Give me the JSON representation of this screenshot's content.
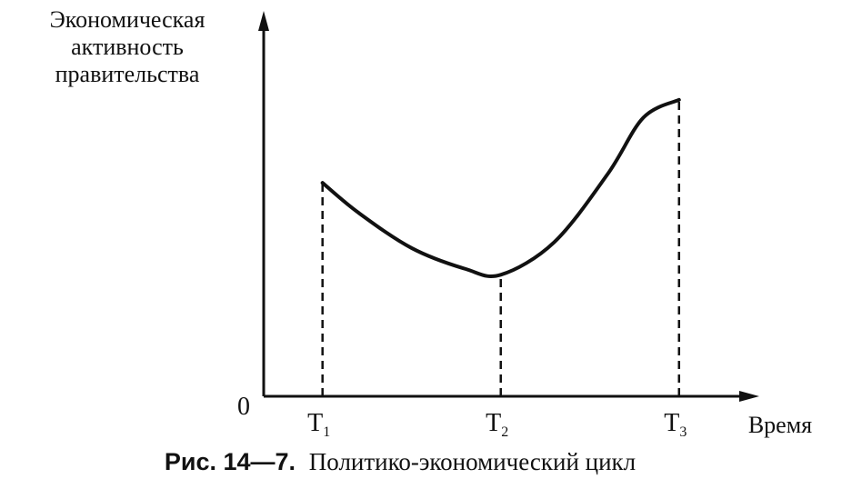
{
  "chart_data": {
    "type": "line",
    "ylabel_lines": [
      "Экономическая",
      "активность",
      "правительства"
    ],
    "xlabel": "Время",
    "origin_label": "0",
    "ticks": [
      {
        "main": "T",
        "sub": "1"
      },
      {
        "main": "T",
        "sub": "2"
      },
      {
        "main": "T",
        "sub": "3"
      }
    ],
    "series": [
      {
        "x": [
          1,
          1.2,
          1.5,
          1.8,
          2.0,
          2.3,
          2.6,
          2.8,
          3.0
        ],
        "y": [
          0.72,
          0.62,
          0.5,
          0.43,
          0.41,
          0.52,
          0.75,
          0.94,
          1.0
        ]
      }
    ],
    "markers": [
      1,
      2,
      3
    ],
    "xlim": [
      0.67,
      3.45
    ],
    "ylim": [
      0,
      1.3
    ],
    "grid": false,
    "caption": {
      "bold": "Рис. 14—7.",
      "text": "Политико-экономический цикл"
    }
  }
}
